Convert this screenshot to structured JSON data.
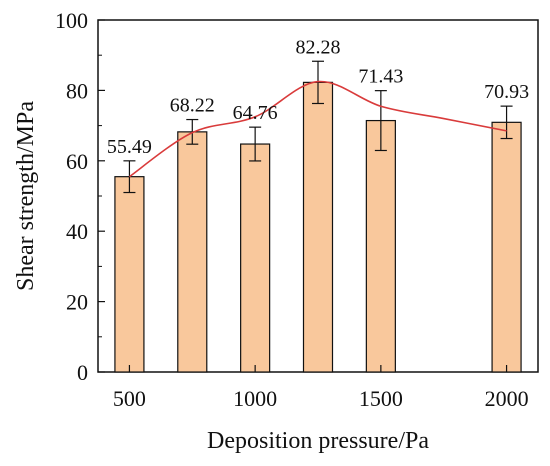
{
  "chart_data": {
    "type": "bar",
    "xlabel": "Deposition pressure/Pa",
    "ylabel": "Shear strength/MPa",
    "x": [
      500,
      750,
      1000,
      1250,
      1500,
      2000
    ],
    "values": [
      55.49,
      68.22,
      64.76,
      82.28,
      71.43,
      70.93
    ],
    "errors": [
      4.5,
      3.5,
      4.8,
      6.0,
      8.5,
      4.6
    ],
    "data_labels": [
      "55.49",
      "68.22",
      "64.76",
      "82.28",
      "71.43",
      "70.93"
    ],
    "xlim": [
      375,
      2125
    ],
    "ylim": [
      0,
      100
    ],
    "x_ticks": [
      500,
      1000,
      1500,
      2000
    ],
    "x_tick_labels": [
      "500",
      "1000",
      "1500",
      "2000"
    ],
    "y_ticks": [
      0,
      20,
      40,
      60,
      80,
      100
    ],
    "y_tick_labels": [
      "0",
      "20",
      "40",
      "60",
      "80",
      "100"
    ],
    "trend_line": {
      "x": [
        500,
        750,
        1000,
        1250,
        1500,
        1750,
        2000
      ],
      "y": [
        55.5,
        68,
        72.5,
        82.5,
        75.5,
        72,
        68.5
      ]
    },
    "bar_color": "#f9c89c",
    "bar_edge_color": "#111111",
    "trend_color": "#d93b3b",
    "grid": false,
    "legend": "none"
  }
}
